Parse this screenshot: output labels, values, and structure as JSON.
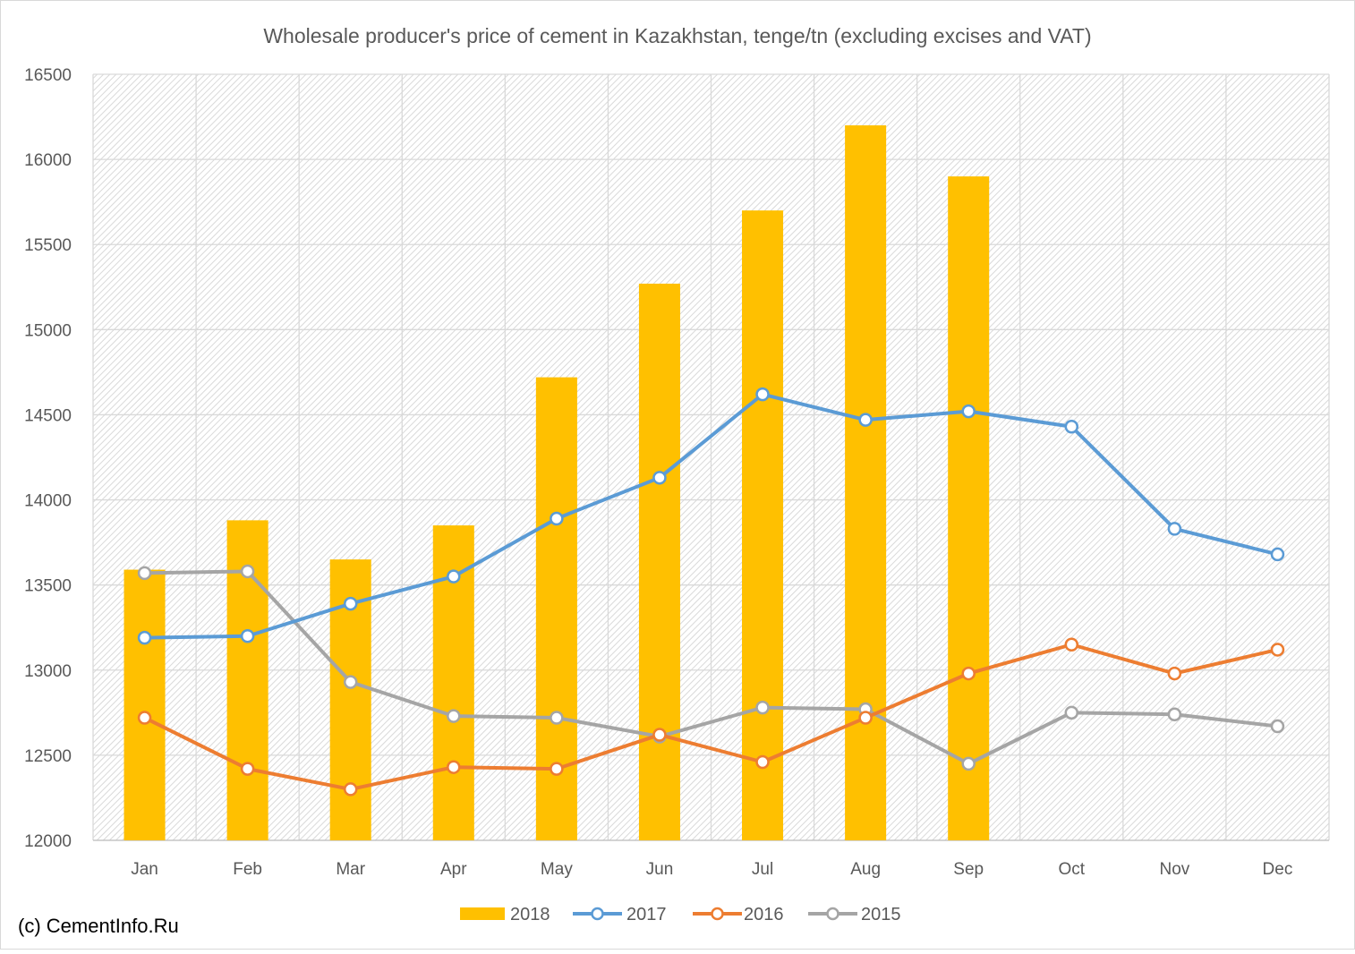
{
  "chart_data": {
    "type": "bar",
    "title": "Wholesale producer's price of cement in Kazakhstan, tenge/tn (excluding excises and VAT)",
    "xlabel": "",
    "ylabel": "",
    "ylim": [
      12000,
      16500
    ],
    "yticks": [
      12000,
      12500,
      13000,
      13500,
      14000,
      14500,
      15000,
      15500,
      16000,
      16500
    ],
    "categories": [
      "Jan",
      "Feb",
      "Mar",
      "Apr",
      "May",
      "Jun",
      "Jul",
      "Aug",
      "Sep",
      "Oct",
      "Nov",
      "Dec"
    ],
    "grid": true,
    "legend_position": "bottom",
    "series": [
      {
        "name": "2018",
        "kind": "bar",
        "color": "#FFC000",
        "values": [
          13590,
          13880,
          13650,
          13850,
          14720,
          15270,
          15700,
          16200,
          15900,
          null,
          null,
          null
        ]
      },
      {
        "name": "2017",
        "kind": "line",
        "color": "#5B9BD5",
        "values": [
          13190,
          13200,
          13390,
          13550,
          13890,
          14130,
          14620,
          14470,
          14520,
          14430,
          13830,
          13680
        ]
      },
      {
        "name": "2016",
        "kind": "line",
        "color": "#ED7D31",
        "values": [
          12720,
          12420,
          12300,
          12430,
          12420,
          12620,
          12460,
          12720,
          12980,
          13150,
          12980,
          13120
        ]
      },
      {
        "name": "2015",
        "kind": "line",
        "color": "#A5A5A5",
        "values": [
          13570,
          13580,
          12930,
          12730,
          12720,
          12610,
          12780,
          12770,
          12450,
          12750,
          12740,
          12670
        ]
      }
    ]
  },
  "source_credit": "(c) CementInfo.Ru"
}
